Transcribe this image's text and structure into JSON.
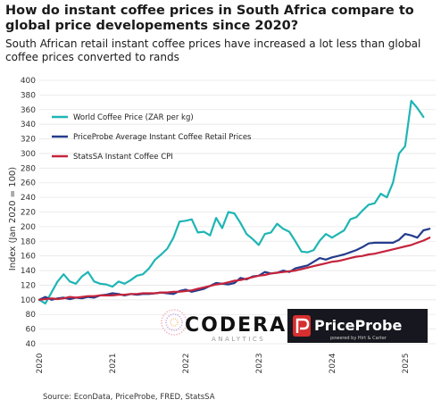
{
  "title": "How do instant coffee prices in South Africa compare to global price developements since 2020?",
  "subtitle": "South African retail instant coffee prices have increased a lot less than global coffee prices converted to rands",
  "source": "Source: EconData, PriceProbe, FRED, StatsSA",
  "logos": {
    "codera_name": "CODERA",
    "codera_tag": "ANALYTICS",
    "priceprobe_name": "PriceProbe",
    "priceprobe_tag": "powered by Hirt & Carter"
  },
  "colors": {
    "world": "#1fb5b5",
    "priceprobe": "#243c8c",
    "statssa": "#c4243c",
    "grid": "#e6e6e6"
  },
  "chart_data": {
    "type": "line",
    "ylabel": "Index (Jan 2020 = 100)",
    "xlabel": "",
    "ylim": [
      40,
      400
    ],
    "yticks": [
      40,
      60,
      80,
      100,
      120,
      140,
      160,
      180,
      200,
      220,
      240,
      260,
      280,
      300,
      320,
      340,
      360,
      380,
      400
    ],
    "xlim": [
      "2020-01",
      "2025-06"
    ],
    "xticks": [
      "2020",
      "2021",
      "2022",
      "2023",
      "2024",
      "2025"
    ],
    "grid": "horizontal",
    "legend": "upper-left",
    "series": [
      {
        "name": "World Coffee Price (ZAR per kg)",
        "color": "#1fb5b5",
        "points": [
          [
            "2020-01",
            100
          ],
          [
            "2020-02",
            95
          ],
          [
            "2020-03",
            110
          ],
          [
            "2020-04",
            125
          ],
          [
            "2020-05",
            135
          ],
          [
            "2020-06",
            125
          ],
          [
            "2020-07",
            122
          ],
          [
            "2020-08",
            132
          ],
          [
            "2020-09",
            138
          ],
          [
            "2020-10",
            125
          ],
          [
            "2020-11",
            122
          ],
          [
            "2020-12",
            121
          ],
          [
            "2021-01",
            118
          ],
          [
            "2021-02",
            125
          ],
          [
            "2021-03",
            122
          ],
          [
            "2021-04",
            127
          ],
          [
            "2021-05",
            133
          ],
          [
            "2021-06",
            135
          ],
          [
            "2021-07",
            143
          ],
          [
            "2021-08",
            155
          ],
          [
            "2021-09",
            162
          ],
          [
            "2021-10",
            170
          ],
          [
            "2021-11",
            185
          ],
          [
            "2021-12",
            207
          ],
          [
            "2022-01",
            208
          ],
          [
            "2022-02",
            210
          ],
          [
            "2022-03",
            192
          ],
          [
            "2022-04",
            193
          ],
          [
            "2022-05",
            188
          ],
          [
            "2022-06",
            212
          ],
          [
            "2022-07",
            198
          ],
          [
            "2022-08",
            220
          ],
          [
            "2022-09",
            218
          ],
          [
            "2022-10",
            205
          ],
          [
            "2022-11",
            190
          ],
          [
            "2022-12",
            183
          ],
          [
            "2023-01",
            175
          ],
          [
            "2023-02",
            190
          ],
          [
            "2023-03",
            192
          ],
          [
            "2023-04",
            204
          ],
          [
            "2023-05",
            197
          ],
          [
            "2023-06",
            193
          ],
          [
            "2023-07",
            180
          ],
          [
            "2023-08",
            166
          ],
          [
            "2023-09",
            165
          ],
          [
            "2023-10",
            168
          ],
          [
            "2023-11",
            181
          ],
          [
            "2023-12",
            190
          ],
          [
            "2024-01",
            185
          ],
          [
            "2024-02",
            190
          ],
          [
            "2024-03",
            195
          ],
          [
            "2024-04",
            210
          ],
          [
            "2024-05",
            213
          ],
          [
            "2024-06",
            222
          ],
          [
            "2024-07",
            230
          ],
          [
            "2024-08",
            232
          ],
          [
            "2024-09",
            245
          ],
          [
            "2024-10",
            240
          ],
          [
            "2024-11",
            260
          ],
          [
            "2024-12",
            300
          ],
          [
            "2025-01",
            310
          ],
          [
            "2025-02",
            372
          ],
          [
            "2025-03",
            362
          ],
          [
            "2025-04",
            350
          ]
        ]
      },
      {
        "name": "PriceProbe Average Instant Coffee Retail Prices",
        "color": "#243c8c",
        "points": [
          [
            "2020-01",
            100
          ],
          [
            "2020-02",
            104
          ],
          [
            "2020-03",
            100
          ],
          [
            "2020-04",
            102
          ],
          [
            "2020-05",
            103
          ],
          [
            "2020-06",
            101
          ],
          [
            "2020-07",
            103
          ],
          [
            "2020-08",
            102
          ],
          [
            "2020-09",
            104
          ],
          [
            "2020-10",
            103
          ],
          [
            "2020-11",
            106
          ],
          [
            "2020-12",
            107
          ],
          [
            "2021-01",
            109
          ],
          [
            "2021-02",
            108
          ],
          [
            "2021-03",
            106
          ],
          [
            "2021-04",
            108
          ],
          [
            "2021-05",
            107
          ],
          [
            "2021-06",
            108
          ],
          [
            "2021-07",
            108
          ],
          [
            "2021-08",
            109
          ],
          [
            "2021-09",
            110
          ],
          [
            "2021-10",
            109
          ],
          [
            "2021-11",
            108
          ],
          [
            "2021-12",
            112
          ],
          [
            "2022-01",
            114
          ],
          [
            "2022-02",
            111
          ],
          [
            "2022-03",
            113
          ],
          [
            "2022-04",
            115
          ],
          [
            "2022-05",
            119
          ],
          [
            "2022-06",
            123
          ],
          [
            "2022-07",
            122
          ],
          [
            "2022-08",
            121
          ],
          [
            "2022-09",
            123
          ],
          [
            "2022-10",
            130
          ],
          [
            "2022-11",
            128
          ],
          [
            "2022-12",
            132
          ],
          [
            "2023-01",
            133
          ],
          [
            "2023-02",
            138
          ],
          [
            "2023-03",
            136
          ],
          [
            "2023-04",
            137
          ],
          [
            "2023-05",
            140
          ],
          [
            "2023-06",
            138
          ],
          [
            "2023-07",
            143
          ],
          [
            "2023-08",
            145
          ],
          [
            "2023-09",
            147
          ],
          [
            "2023-10",
            152
          ],
          [
            "2023-11",
            157
          ],
          [
            "2023-12",
            155
          ],
          [
            "2024-01",
            158
          ],
          [
            "2024-02",
            160
          ],
          [
            "2024-03",
            162
          ],
          [
            "2024-04",
            165
          ],
          [
            "2024-05",
            168
          ],
          [
            "2024-06",
            172
          ],
          [
            "2024-07",
            177
          ],
          [
            "2024-08",
            178
          ],
          [
            "2024-09",
            178
          ],
          [
            "2024-10",
            178
          ],
          [
            "2024-11",
            178
          ],
          [
            "2024-12",
            182
          ],
          [
            "2025-01",
            190
          ],
          [
            "2025-02",
            188
          ],
          [
            "2025-03",
            185
          ],
          [
            "2025-04",
            195
          ],
          [
            "2025-05",
            197
          ]
        ]
      },
      {
        "name": "StatsSA Instant Coffee CPI",
        "color": "#c4243c",
        "points": [
          [
            "2020-01",
            100
          ],
          [
            "2020-02",
            101
          ],
          [
            "2020-03",
            102
          ],
          [
            "2020-04",
            101
          ],
          [
            "2020-05",
            102
          ],
          [
            "2020-06",
            104
          ],
          [
            "2020-07",
            103
          ],
          [
            "2020-08",
            104
          ],
          [
            "2020-09",
            105
          ],
          [
            "2020-10",
            105
          ],
          [
            "2020-11",
            106
          ],
          [
            "2020-12",
            106
          ],
          [
            "2021-01",
            106
          ],
          [
            "2021-02",
            107
          ],
          [
            "2021-03",
            107
          ],
          [
            "2021-04",
            108
          ],
          [
            "2021-05",
            108
          ],
          [
            "2021-06",
            109
          ],
          [
            "2021-07",
            109
          ],
          [
            "2021-08",
            109
          ],
          [
            "2021-09",
            110
          ],
          [
            "2021-10",
            110
          ],
          [
            "2021-11",
            111
          ],
          [
            "2021-12",
            111
          ],
          [
            "2022-01",
            112
          ],
          [
            "2022-02",
            113
          ],
          [
            "2022-03",
            115
          ],
          [
            "2022-04",
            117
          ],
          [
            "2022-05",
            119
          ],
          [
            "2022-06",
            121
          ],
          [
            "2022-07",
            122
          ],
          [
            "2022-08",
            124
          ],
          [
            "2022-09",
            126
          ],
          [
            "2022-10",
            127
          ],
          [
            "2022-11",
            129
          ],
          [
            "2022-12",
            131
          ],
          [
            "2023-01",
            133
          ],
          [
            "2023-02",
            134
          ],
          [
            "2023-03",
            136
          ],
          [
            "2023-04",
            137
          ],
          [
            "2023-05",
            138
          ],
          [
            "2023-06",
            139
          ],
          [
            "2023-07",
            140
          ],
          [
            "2023-08",
            142
          ],
          [
            "2023-09",
            144
          ],
          [
            "2023-10",
            146
          ],
          [
            "2023-11",
            148
          ],
          [
            "2023-12",
            150
          ],
          [
            "2024-01",
            152
          ],
          [
            "2024-02",
            153
          ],
          [
            "2024-03",
            155
          ],
          [
            "2024-04",
            157
          ],
          [
            "2024-05",
            159
          ],
          [
            "2024-06",
            160
          ],
          [
            "2024-07",
            162
          ],
          [
            "2024-08",
            163
          ],
          [
            "2024-09",
            165
          ],
          [
            "2024-10",
            167
          ],
          [
            "2024-11",
            169
          ],
          [
            "2024-12",
            171
          ],
          [
            "2025-01",
            173
          ],
          [
            "2025-02",
            175
          ],
          [
            "2025-03",
            178
          ],
          [
            "2025-04",
            181
          ],
          [
            "2025-05",
            185
          ]
        ]
      }
    ]
  }
}
